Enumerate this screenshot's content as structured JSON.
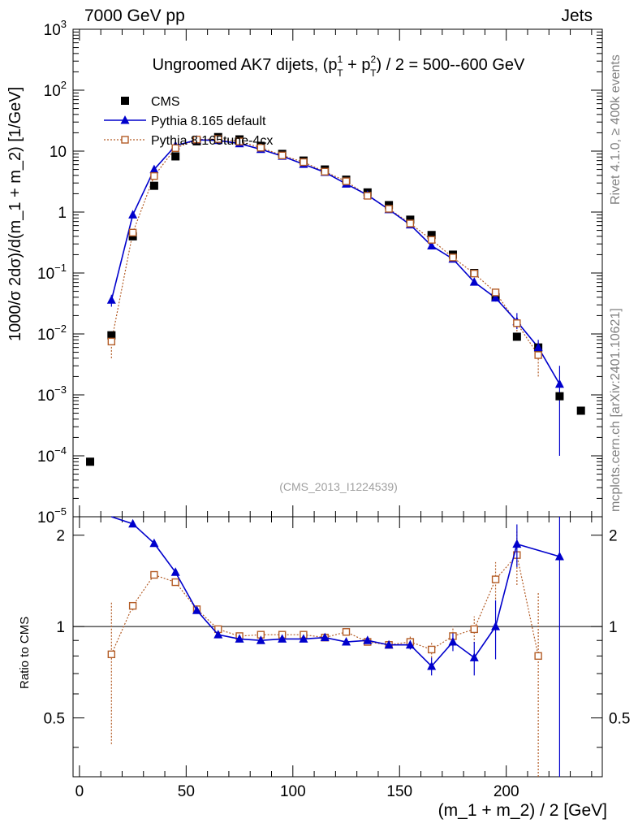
{
  "header": {
    "left": "7000 GeV pp",
    "right": "Jets"
  },
  "side_labels": {
    "rivet": "Rivet 4.1.0, ≥ 400k events",
    "mcplots": "mcplots.cern.ch [arXiv:2401.10621]"
  },
  "chart_data": {
    "type": "scatter",
    "title": "Ungroomed AK7 dijets, (p",
    "title_sup1": "1",
    "title_sub1": "T",
    "title_mid": " + p",
    "title_sup2": "2",
    "title_sub2": "T",
    "title_end": ") / 2 = 500--600 GeV",
    "analysis_id": "(CMS_2013_I1224539)",
    "xlabel": "(m_1 + m_2) / 2 [GeV]",
    "ylabel": "1000/σ  2dσ)/d(m_1 + m_2) [1/GeV]",
    "ratio_ylabel": "Ratio to CMS",
    "xlim": [
      -3,
      245
    ],
    "ylim": [
      1e-05,
      1000
    ],
    "ratio_ylim": [
      0.32,
      2.3
    ],
    "x_ticks": [
      "0",
      "50",
      "100",
      "150",
      "200"
    ],
    "x_tick_values": [
      0,
      50,
      100,
      150,
      200
    ],
    "y_ticks": [
      {
        "value": 1e-05,
        "base": "10",
        "exp": "−5"
      },
      {
        "value": 0.0001,
        "base": "10",
        "exp": "−4"
      },
      {
        "value": 0.001,
        "base": "10",
        "exp": "−3"
      },
      {
        "value": 0.01,
        "base": "10",
        "exp": "−2"
      },
      {
        "value": 0.1,
        "base": "10",
        "exp": "−1"
      },
      {
        "value": 1,
        "base": "1",
        "exp": ""
      },
      {
        "value": 10,
        "base": "10",
        "exp": ""
      },
      {
        "value": 100,
        "base": "10",
        "exp": "2"
      },
      {
        "value": 1000,
        "base": "10",
        "exp": "3"
      }
    ],
    "ratio_ticks": [
      {
        "value": 0.5,
        "label": "0.5"
      },
      {
        "value": 1,
        "label": "1"
      },
      {
        "value": 2,
        "label": "2"
      }
    ],
    "legend": [
      {
        "name": "CMS",
        "color": "#000000"
      },
      {
        "name": "Pythia 8.165 default",
        "color": "#0000cc"
      },
      {
        "name": "Pythia 8.165tune-4cx",
        "color": "#b35c26"
      }
    ],
    "series": [
      {
        "name": "CMS",
        "color": "#000000",
        "x": [
          5,
          15,
          25,
          35,
          45,
          55,
          65,
          75,
          85,
          95,
          105,
          115,
          125,
          135,
          145,
          155,
          165,
          175,
          185,
          195,
          205,
          215,
          225,
          235
        ],
        "y": [
          8e-05,
          0.0095,
          0.4,
          2.7,
          8.2,
          14.5,
          17,
          15.6,
          12.2,
          9.0,
          7.0,
          5.0,
          3.4,
          2.1,
          1.3,
          0.75,
          0.42,
          0.2,
          0.1,
          0.04,
          0.009,
          0.006,
          0.00095,
          0.00055
        ]
      },
      {
        "name": "Pythia 8.165 default",
        "color": "#0000cc",
        "x": [
          15,
          25,
          35,
          45,
          55,
          65,
          75,
          85,
          95,
          105,
          115,
          125,
          135,
          145,
          155,
          165,
          175,
          185,
          195,
          205,
          215,
          225
        ],
        "y": [
          0.036,
          0.9,
          5.0,
          12.3,
          15.3,
          15.0,
          13.3,
          10.7,
          8.3,
          6.1,
          4.5,
          2.9,
          1.9,
          1.1,
          0.62,
          0.28,
          0.17,
          0.071,
          0.039,
          0.016,
          0.006,
          0.0015
        ],
        "err_low": [
          0.008,
          0,
          0,
          0,
          0,
          0,
          0,
          0,
          0,
          0,
          0,
          0,
          0,
          0,
          0,
          0,
          0,
          0,
          0.005,
          0.004,
          0.002,
          0.0014
        ],
        "err_high": [
          0.008,
          0,
          0,
          0,
          0,
          0,
          0,
          0,
          0,
          0,
          0,
          0,
          0,
          0,
          0,
          0,
          0,
          0,
          0.005,
          0.006,
          0.002,
          0.0015
        ],
        "ratio": [
          3.8,
          2.18,
          1.88,
          1.51,
          1.13,
          0.94,
          0.91,
          0.9,
          0.91,
          0.91,
          0.92,
          0.89,
          0.9,
          0.87,
          0.87,
          0.74,
          0.89,
          0.79,
          1.0,
          1.87,
          null,
          1.7
        ],
        "ratio_err": [
          0,
          0.05,
          0,
          0.03,
          0.02,
          0.01,
          0.01,
          0.01,
          0.01,
          0.01,
          0.01,
          0.01,
          0.02,
          0.02,
          0.03,
          0.05,
          0.06,
          0.1,
          0.22,
          0.3,
          null,
          1.6
        ]
      },
      {
        "name": "Pythia 8.165tune-4cx",
        "color": "#b35c26",
        "x": [
          15,
          25,
          35,
          45,
          55,
          65,
          75,
          85,
          95,
          105,
          115,
          125,
          135,
          145,
          155,
          165,
          175,
          185,
          195,
          205,
          215
        ],
        "y": [
          0.0075,
          0.46,
          3.9,
          11.2,
          15.5,
          15.8,
          14.4,
          11.4,
          8.5,
          6.6,
          4.6,
          3.2,
          1.85,
          1.13,
          0.65,
          0.35,
          0.18,
          0.098,
          0.048,
          0.015,
          0.0045
        ],
        "err_low": [
          0.0035,
          0,
          0,
          0,
          0,
          0,
          0,
          0,
          0,
          0,
          0,
          0,
          0,
          0,
          0,
          0,
          0,
          0,
          0.005,
          0.004,
          0.0025
        ],
        "err_high": [
          0.0035,
          0,
          0,
          0,
          0,
          0,
          0,
          0,
          0,
          0,
          0,
          0,
          0,
          0,
          0,
          0,
          0,
          0,
          0.005,
          0.004,
          0.003
        ],
        "ratio": [
          0.81,
          1.17,
          1.48,
          1.4,
          1.14,
          0.98,
          0.93,
          0.94,
          0.94,
          0.94,
          0.92,
          0.96,
          0.89,
          0.87,
          0.89,
          0.84,
          0.93,
          0.98,
          1.43,
          1.72,
          0.8
        ],
        "ratio_err": [
          0.4,
          0.04,
          0.03,
          0.02,
          0.02,
          0.01,
          0.01,
          0.01,
          0.01,
          0.01,
          0.01,
          0.01,
          0.02,
          0.02,
          0.04,
          0.05,
          0.07,
          0.1,
          0.2,
          0.35,
          0.5
        ]
      }
    ]
  }
}
